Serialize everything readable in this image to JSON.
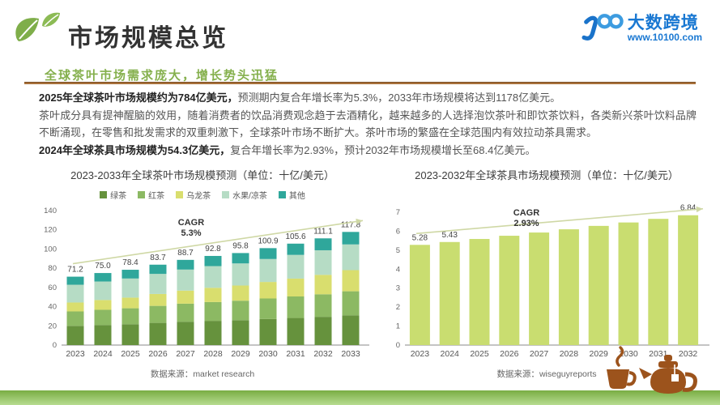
{
  "slide": {
    "title": "市场规模总览",
    "subtitle": "全球茶叶市场需求庞大，增长势头迅猛"
  },
  "brand": {
    "name": "大数跨境",
    "url": "www.10100.com",
    "mark": "100"
  },
  "intro": {
    "p1_bold": "2025年全球茶叶市场规模约为784亿美元，",
    "p1_rest": "预测期内复合年增长率为5.3%，2033年市场规模将达到1178亿美元。",
    "p2": "茶叶成分具有提神醒脑的效用，随着消费者的饮品消费观念趋于去酒精化，越来越多的人选择泡饮茶叶和即饮茶饮料，各类新兴茶叶饮料品牌不断涌现，在零售和批发需求的双重刺激下，全球茶叶市场不断扩大。茶叶市场的繁盛在全球范围内有效拉动茶具需求。",
    "p3_bold": "2024年全球茶具市场规模为54.3亿美元，",
    "p3_rest": "复合年增长率为2.93%，预计2032年市场规模增长至68.4亿美元。"
  },
  "chart_data": [
    {
      "type": "bar",
      "stacked": true,
      "title": "2023-2033年全球茶叶市场规模预测（单位：十亿/美元）",
      "categories": [
        "2023",
        "2024",
        "2025",
        "2026",
        "2027",
        "2028",
        "2029",
        "2030",
        "2031",
        "2032",
        "2033"
      ],
      "series": [
        {
          "name": "绿茶",
          "color": "#66923d",
          "values": [
            20.0,
            20.9,
            21.7,
            23.1,
            24.3,
            25.2,
            25.9,
            27.1,
            28.2,
            29.4,
            31.0
          ]
        },
        {
          "name": "红茶",
          "color": "#8cb963",
          "values": [
            15.0,
            15.8,
            16.6,
            17.7,
            18.8,
            19.6,
            20.3,
            21.4,
            22.4,
            23.5,
            25.0
          ]
        },
        {
          "name": "乌龙茶",
          "color": "#d9de6e",
          "values": [
            9.3,
            10.2,
            11.1,
            12.4,
            13.6,
            14.8,
            15.8,
            17.2,
            18.6,
            20.2,
            22.0
          ]
        },
        {
          "name": "水果/凉茶",
          "color": "#b6dcc5",
          "values": [
            18.5,
            19.3,
            19.9,
            20.9,
            21.9,
            22.6,
            23.0,
            23.9,
            24.7,
            25.6,
            26.8
          ]
        },
        {
          "name": "其他",
          "color": "#2fa79b",
          "values": [
            8.4,
            8.8,
            9.1,
            9.6,
            10.1,
            10.6,
            10.8,
            11.3,
            11.7,
            12.4,
            13.0
          ]
        }
      ],
      "totals": [
        71.2,
        75.0,
        78.4,
        83.7,
        88.7,
        92.8,
        95.8,
        100.9,
        105.6,
        111.1,
        117.8
      ],
      "ylim": [
        0,
        140
      ],
      "yticks": [
        0,
        20,
        40,
        60,
        80,
        100,
        120,
        140
      ],
      "grid": false,
      "legend_position": "top",
      "cagr_label": "CAGR",
      "cagr_value": "5.3%",
      "source_label": "数据来源：",
      "source": "market research"
    },
    {
      "type": "bar",
      "stacked": false,
      "title": "2023-2032年全球茶具市场规模预测（单位：十亿/美元）",
      "categories": [
        "2023",
        "2024",
        "2025",
        "2026",
        "2027",
        "2028",
        "2029",
        "2030",
        "2031",
        "2032"
      ],
      "values": [
        5.28,
        5.43,
        5.59,
        5.76,
        5.93,
        6.1,
        6.28,
        6.46,
        6.65,
        6.84
      ],
      "value_labels_visible_at": [
        0,
        1,
        9
      ],
      "bar_color": "#c9dd70",
      "ylim": [
        0,
        7
      ],
      "yticks": [
        0,
        1,
        2,
        3,
        4,
        5,
        6,
        7
      ],
      "grid": false,
      "cagr_label": "CAGR",
      "cagr_value": "2.93%",
      "source_label": "数据来源：",
      "source": "wiseguyreports"
    }
  ],
  "colors": {
    "accent_green": "#85b04d",
    "divider_brown": "#a9713b",
    "brand_blue": "#1a78d2",
    "arrow": "#cfd8a5",
    "teaware_brown": "#9c531c",
    "footer_top": "#79ad43",
    "footer_bottom": "#b7dc90"
  }
}
